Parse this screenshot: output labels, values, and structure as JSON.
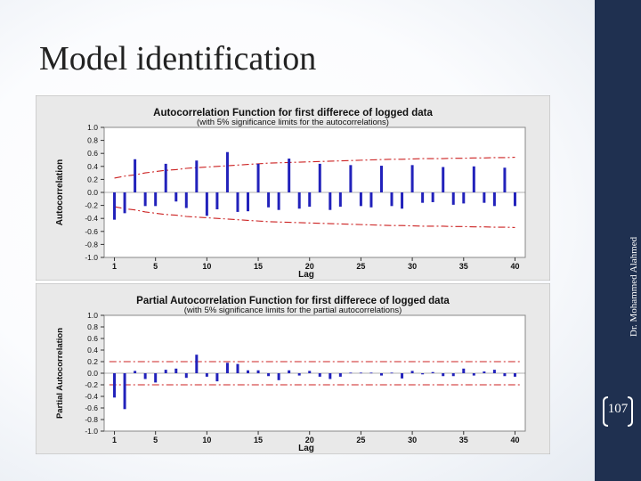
{
  "slide": {
    "title": "Model identification",
    "author": "Dr. Mohammed Alahmed",
    "page_number": "107",
    "colors": {
      "sidebar": "#1f3050",
      "bars": "#2222bb",
      "limits": "#cc2222",
      "plot_bg": "#ffffff",
      "panel_bg": "#e9e9e9"
    }
  },
  "chart_data": [
    {
      "type": "bar",
      "title": "Autocorrelation Function for first differece of logged data",
      "subtitle": "(with 5% significance limits for the autocorrelations)",
      "xlabel": "Lag",
      "ylabel": "Autocorrelation",
      "x_ticks": [
        1,
        5,
        10,
        15,
        20,
        25,
        30,
        35,
        40
      ],
      "y_ticks": [
        "1.0",
        "0.8",
        "0.6",
        "0.4",
        "0.2",
        "0.0",
        "-0.2",
        "-0.4",
        "-0.6",
        "-0.8",
        "-1.0"
      ],
      "ylim": [
        -1,
        1
      ],
      "xlim": [
        0,
        41
      ],
      "grid": false,
      "lags": [
        1,
        2,
        3,
        4,
        5,
        6,
        7,
        8,
        9,
        10,
        11,
        12,
        13,
        14,
        15,
        16,
        17,
        18,
        19,
        20,
        21,
        22,
        23,
        24,
        25,
        26,
        27,
        28,
        29,
        30,
        31,
        32,
        33,
        34,
        35,
        36,
        37,
        38,
        39,
        40
      ],
      "values": [
        -0.42,
        -0.32,
        0.51,
        -0.21,
        -0.21,
        0.44,
        -0.14,
        -0.24,
        0.49,
        -0.36,
        -0.26,
        0.62,
        -0.3,
        -0.29,
        0.44,
        -0.23,
        -0.27,
        0.52,
        -0.25,
        -0.22,
        0.44,
        -0.27,
        -0.22,
        0.42,
        -0.21,
        -0.23,
        0.41,
        -0.21,
        -0.25,
        0.42,
        -0.16,
        -0.15,
        0.39,
        -0.19,
        -0.17,
        0.4,
        -0.16,
        -0.21,
        0.38,
        -0.21
      ],
      "significance_limit": [
        0.22,
        0.25,
        0.27,
        0.3,
        0.32,
        0.34,
        0.35,
        0.37,
        0.38,
        0.39,
        0.4,
        0.41,
        0.42,
        0.43,
        0.44,
        0.45,
        0.455,
        0.46,
        0.465,
        0.47,
        0.475,
        0.48,
        0.485,
        0.49,
        0.495,
        0.5,
        0.505,
        0.51,
        0.51,
        0.515,
        0.52,
        0.52,
        0.52,
        0.525,
        0.525,
        0.53,
        0.53,
        0.535,
        0.535,
        0.54
      ]
    },
    {
      "type": "bar",
      "title": "Partial Autocorrelation Function for first differece of logged data",
      "subtitle": "(with 5% significance limits for the partial autocorrelations)",
      "xlabel": "Lag",
      "ylabel": "Partial Autocorrelation",
      "x_ticks": [
        1,
        5,
        10,
        15,
        20,
        25,
        30,
        35,
        40
      ],
      "y_ticks": [
        "1.0",
        "0.8",
        "0.6",
        "0.4",
        "0.2",
        "0.0",
        "-0.2",
        "-0.4",
        "-0.6",
        "-0.8",
        "-1.0"
      ],
      "ylim": [
        -1,
        1
      ],
      "xlim": [
        0,
        41
      ],
      "grid": false,
      "lags": [
        1,
        2,
        3,
        4,
        5,
        6,
        7,
        8,
        9,
        10,
        11,
        12,
        13,
        14,
        15,
        16,
        17,
        18,
        19,
        20,
        21,
        22,
        23,
        24,
        25,
        26,
        27,
        28,
        29,
        30,
        31,
        32,
        33,
        34,
        35,
        36,
        37,
        38,
        39,
        40
      ],
      "values": [
        -0.42,
        -0.62,
        0.04,
        -0.1,
        -0.16,
        0.06,
        0.08,
        -0.08,
        0.32,
        -0.06,
        -0.14,
        0.18,
        0.16,
        0.05,
        0.05,
        -0.05,
        -0.12,
        0.05,
        -0.04,
        0.04,
        -0.06,
        -0.1,
        -0.06,
        0.01,
        0.01,
        0.01,
        -0.04,
        0.01,
        -0.09,
        0.04,
        -0.02,
        0.02,
        -0.05,
        -0.05,
        0.08,
        -0.04,
        0.03,
        0.06,
        -0.05,
        -0.06
      ],
      "significance_limit": 0.2
    }
  ]
}
